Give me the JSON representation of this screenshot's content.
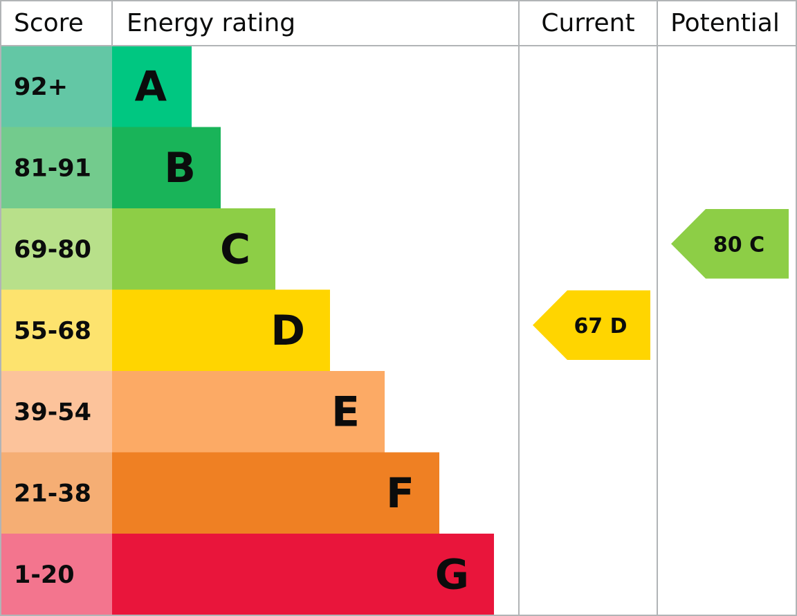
{
  "header": {
    "score": "Score",
    "rating": "Energy rating",
    "current": "Current",
    "potential": "Potential"
  },
  "bands": [
    {
      "score": "92+",
      "letter": "A",
      "color": "#00c781",
      "score_color": "#63c7a5"
    },
    {
      "score": "81-91",
      "letter": "B",
      "color": "#19b459",
      "score_color": "#73cb8d"
    },
    {
      "score": "69-80",
      "letter": "C",
      "color": "#8dce46",
      "score_color": "#b8e08a"
    },
    {
      "score": "55-68",
      "letter": "D",
      "color": "#ffd500",
      "score_color": "#fde36e"
    },
    {
      "score": "39-54",
      "letter": "E",
      "color": "#fcaa65",
      "score_color": "#fcc39b"
    },
    {
      "score": "21-38",
      "letter": "F",
      "color": "#ef8023",
      "score_color": "#f5ae74"
    },
    {
      "score": "1-20",
      "letter": "G",
      "color": "#e9153b",
      "score_color": "#f3758e"
    }
  ],
  "current": {
    "score": 67,
    "band": "D"
  },
  "potential": {
    "score": 80,
    "band": "C"
  }
}
